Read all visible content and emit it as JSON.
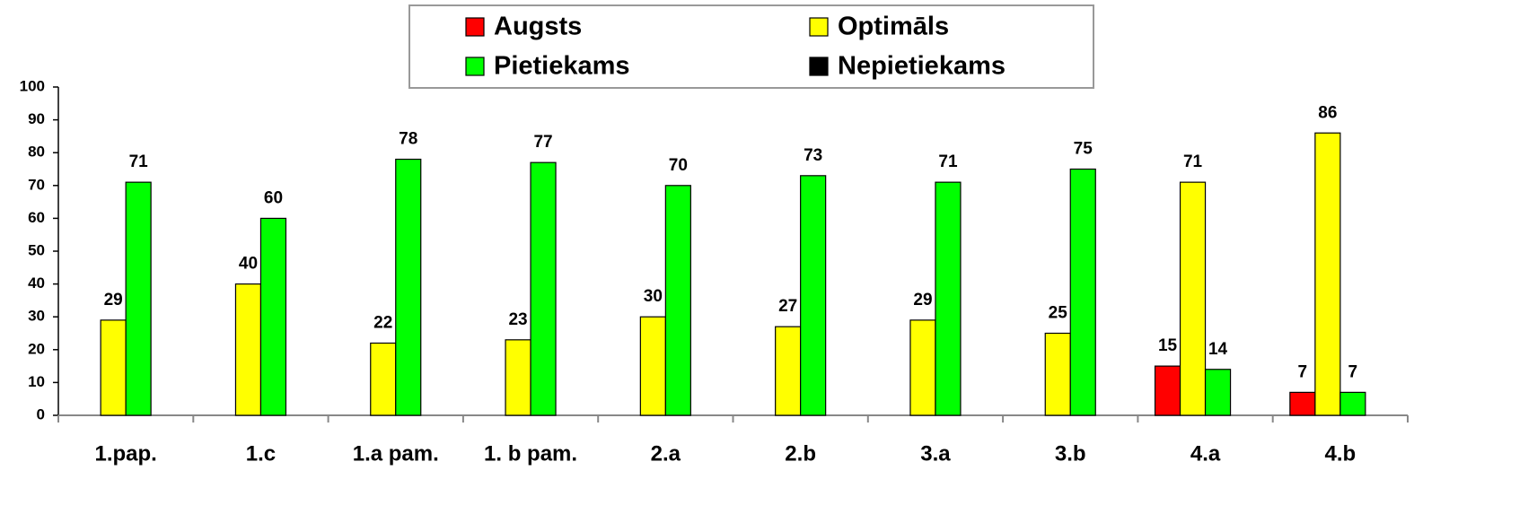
{
  "chart_data": {
    "type": "bar",
    "categories": [
      "1.pap.",
      "1.c",
      "1.a pam.",
      "1. b pam.",
      "2.a",
      "2.b",
      "3.a",
      "3.b",
      "4.a",
      "4.b"
    ],
    "series": [
      {
        "name": "Augsts",
        "color": "#ff0000",
        "values": [
          null,
          null,
          null,
          null,
          null,
          null,
          null,
          null,
          15,
          7
        ]
      },
      {
        "name": "Optimāls",
        "color": "#ffff00",
        "values": [
          29,
          40,
          22,
          23,
          30,
          27,
          29,
          25,
          71,
          86
        ]
      },
      {
        "name": "Pietiekams",
        "color": "#00ff00",
        "values": [
          71,
          60,
          78,
          77,
          70,
          73,
          71,
          75,
          14,
          7
        ]
      },
      {
        "name": "Nepietiekams",
        "color": "#000000",
        "values": [
          null,
          null,
          null,
          null,
          null,
          null,
          null,
          null,
          null,
          null
        ]
      }
    ],
    "ylim": [
      0,
      100
    ],
    "yticks": [
      0,
      10,
      20,
      30,
      40,
      50,
      60,
      70,
      80,
      90,
      100
    ],
    "grid": false,
    "legend": "top"
  }
}
